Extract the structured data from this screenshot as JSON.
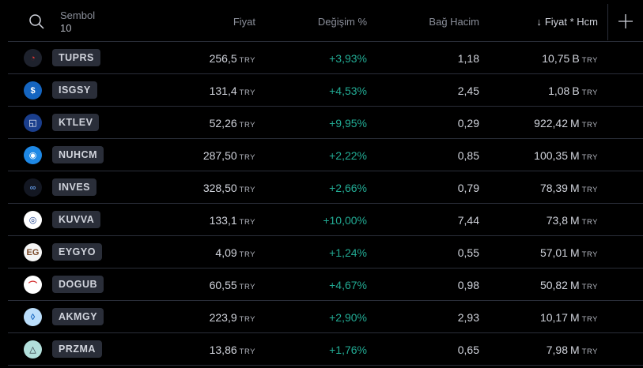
{
  "header": {
    "symbol_label": "Sembol",
    "symbol_count": "10",
    "price_label": "Fiyat",
    "change_label": "Değişim %",
    "volume_label": "Bağ Hacim",
    "sort_label": "Fiyat * Hcm",
    "sort_icon": "arrow-down-icon",
    "add_icon": "plus-icon",
    "search_icon": "search-icon"
  },
  "currency": "TRY",
  "rows": [
    {
      "ticker": "TUPRS",
      "price": "256,5",
      "change": "+3,93%",
      "volume": "1,18",
      "mcap": "10,75",
      "mult": "B",
      "logo_bg": "#1e222d",
      "logo_fg": "#e53935",
      "logo_text": "◔"
    },
    {
      "ticker": "ISGSY",
      "price": "131,4",
      "change": "+4,53%",
      "volume": "2,45",
      "mcap": "1,08",
      "mult": "B",
      "logo_bg": "#1565c0",
      "logo_fg": "#ffffff",
      "logo_text": "$"
    },
    {
      "ticker": "KTLEV",
      "price": "52,26",
      "change": "+9,95%",
      "volume": "0,29",
      "mcap": "922,42",
      "mult": "M",
      "logo_bg": "#1a3e8c",
      "logo_fg": "#ffffff",
      "logo_text": "◱"
    },
    {
      "ticker": "NUHCM",
      "price": "287,50",
      "change": "+2,22%",
      "volume": "0,85",
      "mcap": "100,35",
      "mult": "M",
      "logo_bg": "#1e88e5",
      "logo_fg": "#ffffff",
      "logo_text": "◉"
    },
    {
      "ticker": "INVES",
      "price": "328,50",
      "change": "+2,66%",
      "volume": "0,79",
      "mcap": "78,39",
      "mult": "M",
      "logo_bg": "#131722",
      "logo_fg": "#5c8fd6",
      "logo_text": "∞"
    },
    {
      "ticker": "KUVVA",
      "price": "133,1",
      "change": "+10,00%",
      "volume": "7,44",
      "mcap": "73,8",
      "mult": "M",
      "logo_bg": "#ffffff",
      "logo_fg": "#1a3e8c",
      "logo_text": "◎"
    },
    {
      "ticker": "EYGYO",
      "price": "4,09",
      "change": "+1,24%",
      "volume": "0,55",
      "mcap": "57,01",
      "mult": "M",
      "logo_bg": "#f5f5f5",
      "logo_fg": "#7a4a2a",
      "logo_text": "EG"
    },
    {
      "ticker": "DOGUB",
      "price": "60,55",
      "change": "+4,67%",
      "volume": "0,98",
      "mcap": "50,82",
      "mult": "M",
      "logo_bg": "#ffffff",
      "logo_fg": "#d32f2f",
      "logo_text": "⌒"
    },
    {
      "ticker": "AKMGY",
      "price": "223,9",
      "change": "+2,90%",
      "volume": "2,93",
      "mcap": "10,17",
      "mult": "M",
      "logo_bg": "#bbdefb",
      "logo_fg": "#1565c0",
      "logo_text": "◊"
    },
    {
      "ticker": "PRZMA",
      "price": "13,86",
      "change": "+1,76%",
      "volume": "0,65",
      "mcap": "7,98",
      "mult": "M",
      "logo_bg": "#b2dfdb",
      "logo_fg": "#1e222d",
      "logo_text": "△"
    }
  ]
}
